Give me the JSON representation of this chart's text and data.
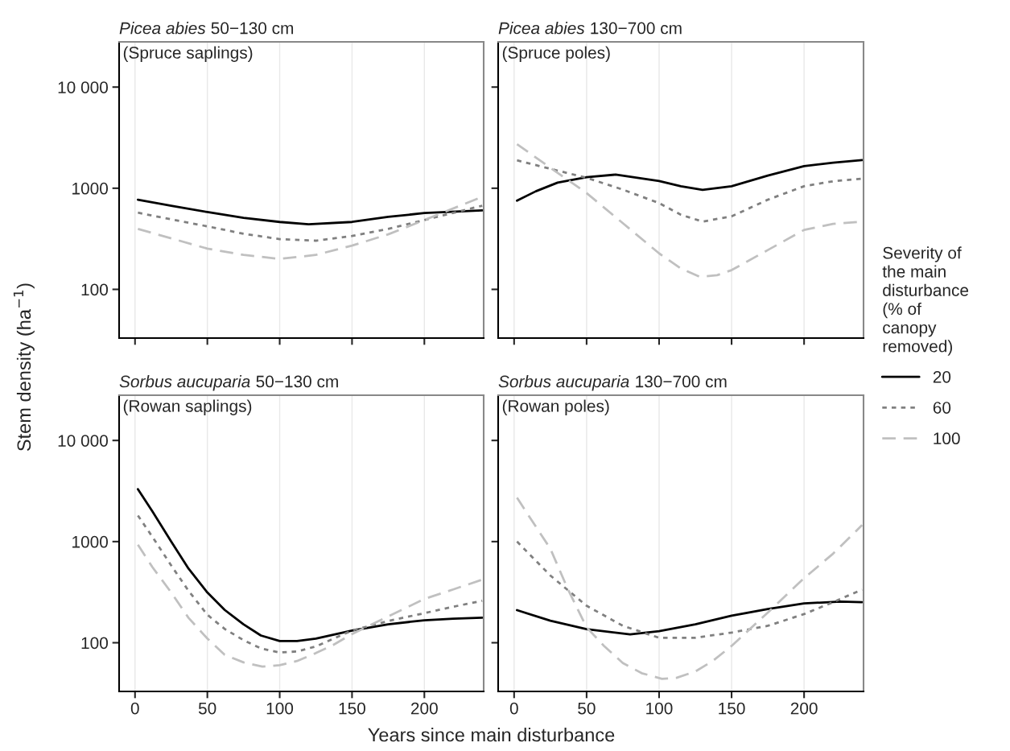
{
  "chart_data": [
    {
      "type": "line",
      "title": "Picea abies 50−130 cm",
      "annotations": [
        "(Spruce saplings)"
      ],
      "ylabel": "Stem density (ha$^{−1}$)",
      "log": "y",
      "grid": "x",
      "tick_labels": "y",
      "xlim": [
        -11,
        241
      ],
      "ylim": [
        33,
        28000
      ],
      "xticks": [
        0,
        50,
        100,
        150,
        200
      ],
      "yticks": [
        100,
        1000,
        {
          "value": 10000,
          "label": "10 000"
        }
      ],
      "series": [
        {
          "color": "#000000",
          "line_style": "solid",
          "x": [
            2,
            25,
            50,
            75,
            100,
            120,
            150,
            175,
            200,
            240
          ],
          "values": [
            771,
            671,
            581,
            510,
            464,
            441,
            464,
            521,
            568,
            603
          ]
        },
        {
          "color": "#808080",
          "line_style": "dotted",
          "x": [
            2,
            25,
            50,
            75,
            100,
            125,
            150,
            175,
            200,
            240
          ],
          "values": [
            573,
            492,
            420,
            355,
            314,
            303,
            337,
            396,
            485,
            672
          ]
        },
        {
          "color": "#c0c0c0",
          "line_style": "dashed",
          "x": [
            2,
            50,
            75,
            100,
            125,
            150,
            175,
            200,
            240
          ],
          "values": [
            396,
            253,
            219,
            200,
            219,
            271,
            350,
            485,
            822
          ]
        }
      ]
    },
    {
      "type": "line",
      "title": "Picea abies 130−700 cm",
      "annotations": [
        "(Spruce poles)"
      ],
      "log": "y",
      "grid": "x",
      "tick_labels": false,
      "legend": "right",
      "legend_title": "Severity of the main disturbance (% of canopy removed)",
      "xlim": [
        -11,
        241
      ],
      "ylim": [
        33,
        28000
      ],
      "xticks": [
        0,
        50,
        100,
        150,
        200
      ],
      "yticks": [
        100,
        1000,
        10000
      ],
      "series": [
        {
          "name": "20",
          "color": "#000000",
          "line_style": "solid",
          "x": [
            2,
            15,
            30,
            50,
            70,
            100,
            115,
            130,
            150,
            175,
            200,
            220,
            240
          ],
          "values": [
            753,
            933,
            1136,
            1286,
            1364,
            1178,
            1047,
            964,
            1047,
            1335,
            1655,
            1785,
            1900
          ]
        },
        {
          "name": "60",
          "color": "#808080",
          "line_style": "dotted",
          "x": [
            2,
            25,
            50,
            75,
            100,
            115,
            130,
            150,
            175,
            200,
            220,
            240
          ],
          "values": [
            1886,
            1556,
            1268,
            969,
            713,
            547,
            468,
            527,
            770,
            1047,
            1172,
            1245
          ]
        },
        {
          "name": "100",
          "color": "#c0c0c0",
          "line_style": "dashed",
          "x": [
            2,
            25,
            50,
            75,
            100,
            115,
            128,
            140,
            150,
            175,
            200,
            220,
            240
          ],
          "values": [
            2730,
            1593,
            896,
            451,
            227,
            161,
            133,
            138,
            155,
            245,
            387,
            444,
            468
          ]
        }
      ]
    },
    {
      "type": "line",
      "title": "Sorbus aucuparia 50−130 cm",
      "annotations": [
        "(Rowan saplings)"
      ],
      "xlabel": "Years since main disturbance",
      "log": "y",
      "grid": "x",
      "xlim": [
        -11,
        241
      ],
      "ylim": [
        33,
        28000
      ],
      "xticks": [
        0,
        50,
        100,
        150,
        200
      ],
      "yticks": [
        100,
        1000,
        {
          "value": 10000,
          "label": "10 000"
        }
      ],
      "series": [
        {
          "color": "#000000",
          "line_style": "solid",
          "x": [
            2,
            12,
            25,
            37,
            50,
            62,
            75,
            87,
            100,
            112,
            125,
            150,
            175,
            200,
            220,
            240
          ],
          "values": [
            3300,
            1990,
            1000,
            540,
            314,
            211,
            152,
            118,
            104,
            104,
            110,
            132,
            152,
            167,
            173,
            177
          ]
        },
        {
          "color": "#808080",
          "line_style": "dotted",
          "x": [
            2,
            12,
            25,
            37,
            50,
            62,
            75,
            87,
            100,
            112,
            125,
            150,
            175,
            200,
            220,
            240
          ],
          "values": [
            1810,
            1115,
            581,
            326,
            189,
            137,
            106,
            88,
            80,
            82,
            92,
            132,
            164,
            196,
            227,
            260
          ]
        },
        {
          "color": "#c0c0c0",
          "line_style": "dashed",
          "x": [
            2,
            12,
            25,
            37,
            50,
            62,
            75,
            88,
            100,
            112,
            125,
            137,
            150,
            175,
            200,
            220,
            240
          ],
          "values": [
            930,
            560,
            314,
            176,
            110,
            76,
            64,
            58,
            60,
            66,
            79,
            95,
            122,
            182,
            271,
            337,
            420
          ]
        }
      ]
    },
    {
      "type": "line",
      "title": "Sorbus aucuparia 130−700 cm",
      "annotations": [
        "(Rowan poles)"
      ],
      "log": "y",
      "grid": "x",
      "tick_labels": "x",
      "xlim": [
        -11,
        241
      ],
      "ylim": [
        33,
        28000
      ],
      "xticks": [
        0,
        50,
        100,
        150,
        200
      ],
      "yticks": [
        100,
        1000,
        10000
      ],
      "series": [
        {
          "color": "#000000",
          "line_style": "solid",
          "x": [
            2,
            25,
            50,
            80,
            100,
            125,
            150,
            175,
            200,
            225,
            240
          ],
          "values": [
            210,
            165,
            136,
            121,
            130,
            152,
            185,
            215,
            245,
            255,
            252
          ]
        },
        {
          "color": "#808080",
          "line_style": "dotted",
          "x": [
            2,
            25,
            50,
            75,
            100,
            125,
            150,
            175,
            200,
            220,
            240
          ],
          "values": [
            1000,
            462,
            232,
            147,
            112,
            112,
            126,
            147,
            192,
            252,
            335
          ]
        },
        {
          "color": "#c0c0c0",
          "line_style": "dashed",
          "x": [
            2,
            12,
            25,
            37,
            50,
            62,
            75,
            88,
            102,
            112,
            125,
            137,
            150,
            175,
            200,
            220,
            240
          ],
          "values": [
            2720,
            1633,
            851,
            340,
            142,
            93,
            63,
            50,
            44,
            45,
            52,
            66,
            93,
            199,
            435,
            760,
            1456
          ]
        }
      ]
    }
  ]
}
